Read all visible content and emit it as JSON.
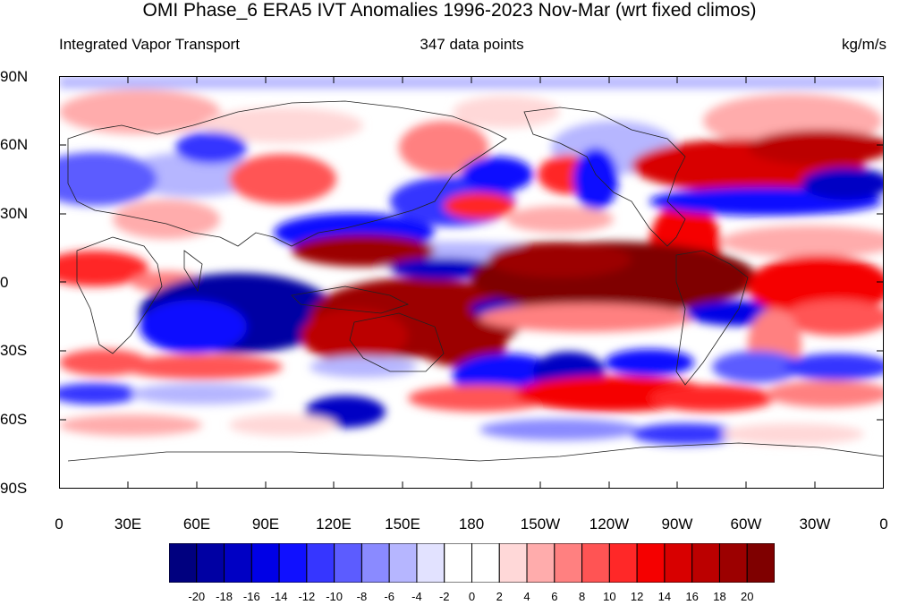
{
  "title": "OMI Phase_6 ERA5 IVT Anomalies 1996-2023 Nov-Mar (wrt fixed climos)",
  "left_subtitle": "Integrated Vapor Transport",
  "center_subtitle": "347 data points",
  "units": "kg/m/s",
  "lat_labels": [
    "90N",
    "60N",
    "30N",
    "0",
    "30S",
    "60S",
    "90S"
  ],
  "lon_labels": [
    "0",
    "30E",
    "60E",
    "90E",
    "120E",
    "150E",
    "180",
    "150W",
    "120W",
    "90W",
    "60W",
    "30W",
    "0"
  ],
  "colorbar": {
    "labels": [
      "-20",
      "-18",
      "-16",
      "-14",
      "-12",
      "-10",
      "-8",
      "-6",
      "-4",
      "-2",
      "0",
      "2",
      "4",
      "6",
      "8",
      "10",
      "12",
      "14",
      "16",
      "18",
      "20"
    ],
    "colors": [
      "#00007f",
      "#0000a3",
      "#0000c4",
      "#0000e6",
      "#1010ff",
      "#3636ff",
      "#5c5cff",
      "#8a8aff",
      "#b6b6ff",
      "#e2e2ff",
      "#ffffff",
      "#ffffff",
      "#ffd8d8",
      "#ffacac",
      "#ff8080",
      "#ff5454",
      "#ff2828",
      "#f50000",
      "#d80000",
      "#bb0000",
      "#9c0000",
      "#7f0000"
    ]
  }
}
